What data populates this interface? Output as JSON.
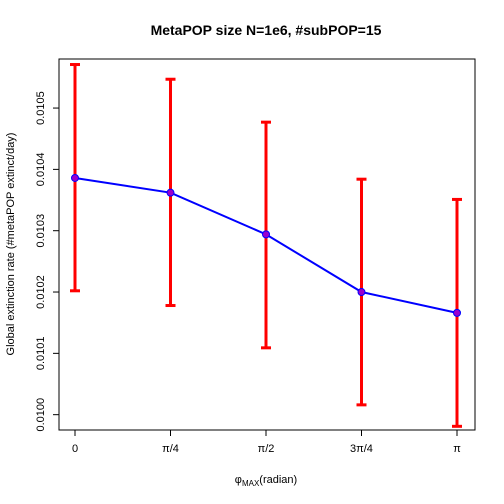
{
  "chart_data": {
    "type": "line",
    "title": "MetaPOP size N=1e6, #subPOP=15",
    "xlabel_symbol": "φ",
    "xlabel_subscript": "MAX",
    "xlabel_suffix": "(radian)",
    "ylabel": "Global extinction rate (#metaPOP extinct/day)",
    "categories": [
      "0",
      "π/4",
      "π/2",
      "3π/4",
      "π"
    ],
    "series": [
      {
        "values": [
          0.010386,
          0.010362,
          0.010294,
          0.0102,
          0.010166
        ],
        "error_upper": [
          0.010571,
          0.010547,
          0.010477,
          0.010384,
          0.010351
        ],
        "error_lower": [
          0.010202,
          0.010178,
          0.010109,
          0.010016,
          0.009981
        ]
      }
    ],
    "yticks": [
      "0.0100",
      "0.0101",
      "0.0102",
      "0.0103",
      "0.0104",
      "0.0105"
    ],
    "ylim": [
      0.009975,
      0.01058
    ],
    "grid": false,
    "colors": {
      "line": "#0000ff",
      "errorbar": "#ff0000",
      "point_fill": "#9a00cd",
      "point_stroke": "#0000ff",
      "axis": "#000000"
    }
  }
}
